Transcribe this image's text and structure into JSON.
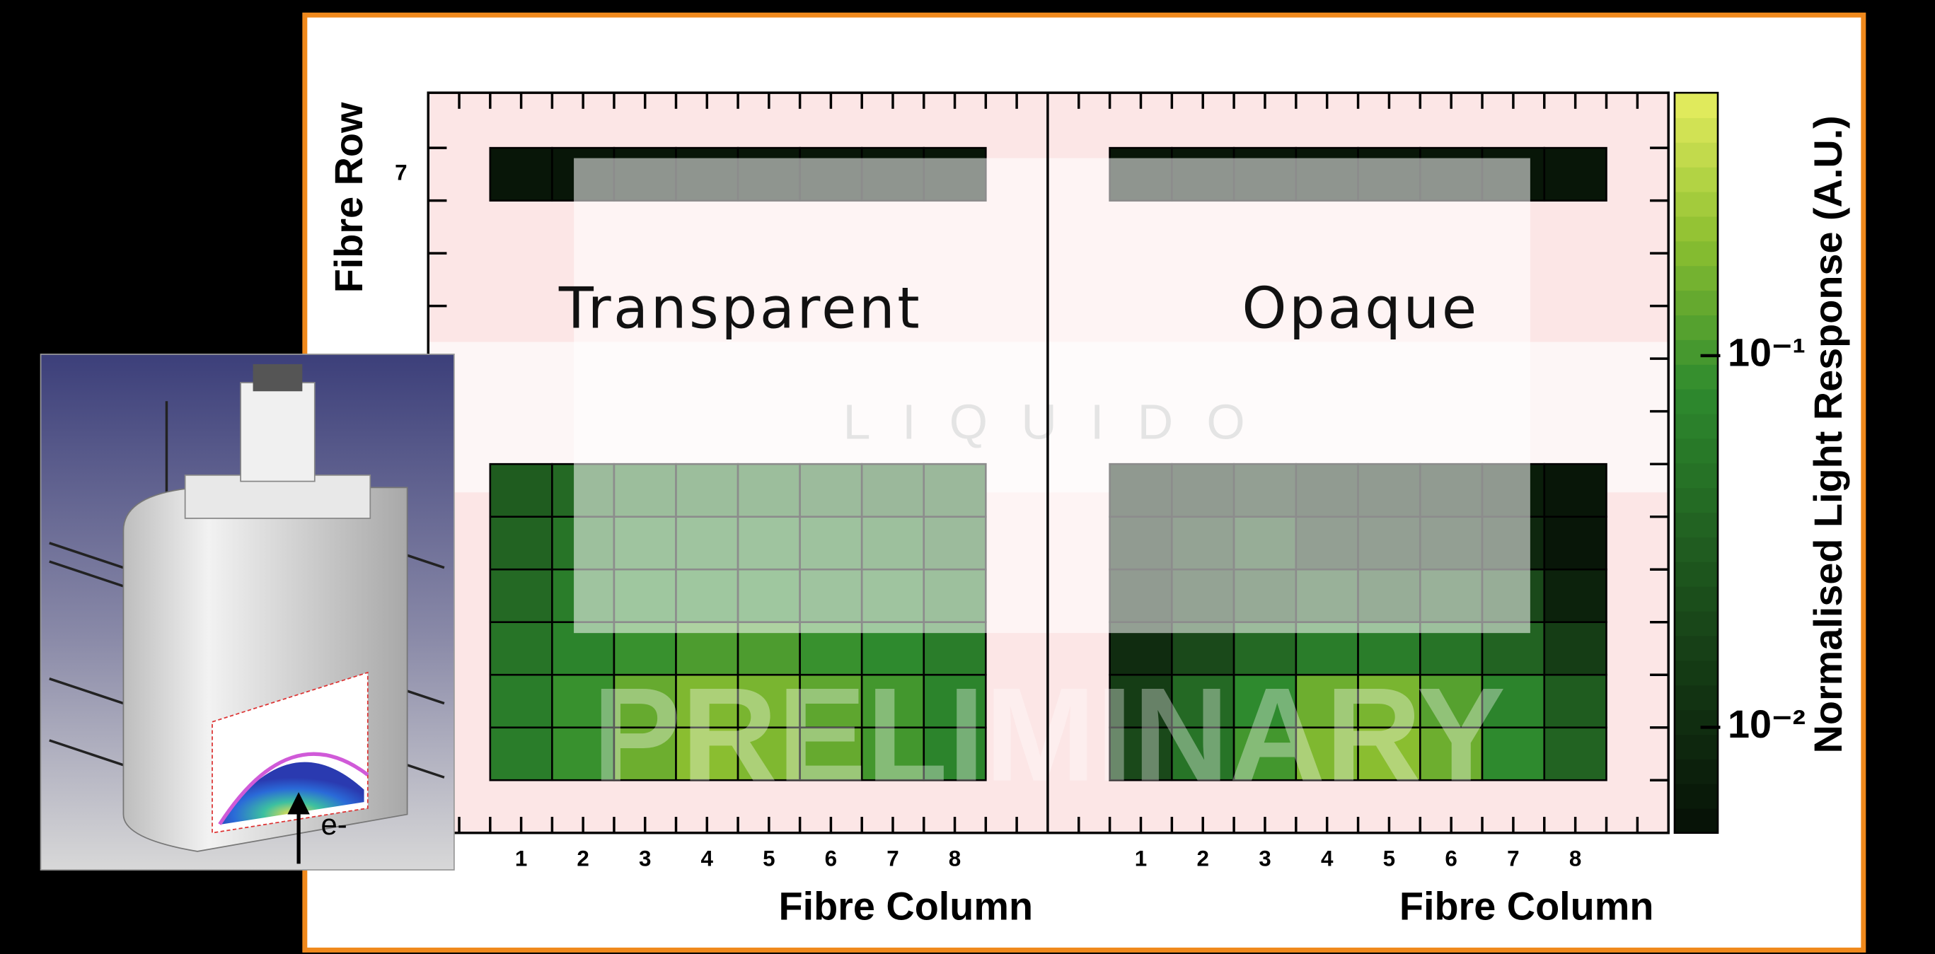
{
  "chart_data": [
    {
      "type": "heatmap",
      "title": "Transparent",
      "x_label": "Fibre Column",
      "y_label": "Fibre Row",
      "categories": [
        1,
        2,
        3,
        4,
        5,
        6,
        7,
        8
      ],
      "y_categories": [
        null,
        null,
        null,
        null,
        null,
        null,
        null,
        null,
        null,
        null,
        null,
        null,
        "7",
        null
      ],
      "values": [
        null,
        [
          0.06,
          0.09,
          0.15,
          0.2,
          0.18,
          0.14,
          0.1,
          0.07
        ],
        [
          0.06,
          0.09,
          0.14,
          0.18,
          0.17,
          0.13,
          0.1,
          0.07
        ],
        [
          0.05,
          0.07,
          0.09,
          0.11,
          0.11,
          0.09,
          0.08,
          0.06
        ],
        [
          0.04,
          0.06,
          0.07,
          0.07,
          0.07,
          0.06,
          0.06,
          0.05
        ],
        [
          0.035,
          0.05,
          0.06,
          0.06,
          0.06,
          0.055,
          0.05,
          0.04
        ],
        [
          0.03,
          0.04,
          0.045,
          0.045,
          0.045,
          0.04,
          0.035,
          0.035
        ],
        null,
        null,
        null,
        null,
        null,
        [
          0.006,
          0.006,
          0.006,
          0.006,
          0.006,
          0.006,
          0.006,
          0.006
        ],
        null
      ]
    },
    {
      "type": "heatmap",
      "title": "Opaque",
      "x_label": "Fibre Column",
      "categories": [
        1,
        2,
        3,
        4,
        5,
        6,
        7,
        8
      ],
      "values": [
        null,
        [
          0.02,
          0.05,
          0.1,
          0.18,
          0.2,
          0.15,
          0.08,
          0.035
        ],
        [
          0.015,
          0.04,
          0.08,
          0.15,
          0.17,
          0.12,
          0.07,
          0.03
        ],
        [
          0.01,
          0.02,
          0.04,
          0.06,
          0.06,
          0.05,
          0.035,
          0.015
        ],
        [
          0.008,
          0.012,
          0.018,
          0.025,
          0.02,
          0.025,
          0.02,
          0.008
        ],
        [
          0.008,
          0.012,
          0.02,
          0.01,
          0.01,
          0.01,
          0.009,
          0.006
        ],
        [
          0.007,
          0.008,
          0.01,
          0.008,
          0.008,
          0.008,
          0.007,
          0.006
        ],
        null,
        null,
        null,
        null,
        null,
        [
          0.006,
          0.006,
          0.006,
          0.006,
          0.006,
          0.006,
          0.006,
          0.006
        ],
        null
      ]
    }
  ],
  "colorbar": {
    "label": "Normalised Light Response (A.U.)",
    "log": true,
    "zlim": [
      0.0052,
      0.51
    ],
    "zticks": [
      {
        "value": 0.1,
        "label": "10⁻¹"
      },
      {
        "value": 0.01,
        "label": "10⁻²"
      }
    ]
  },
  "annotations": {
    "watermark": "PRELIMINARY",
    "logo": "L I Q U I D O",
    "beam": "e-"
  }
}
